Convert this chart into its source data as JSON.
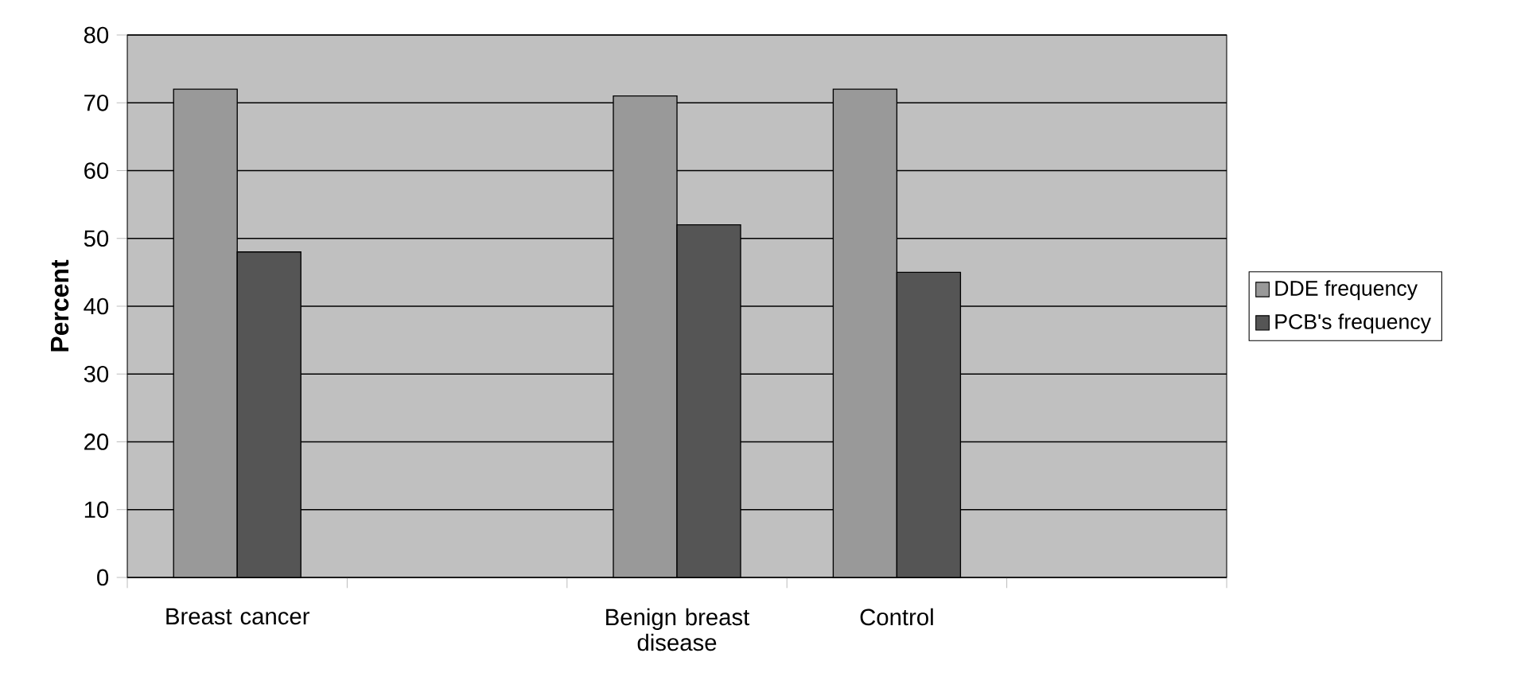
{
  "chart_data": {
    "type": "bar",
    "ylabel": "Percent",
    "categories": [
      "Breast cancer",
      null,
      "Benign breast disease",
      "Control",
      null
    ],
    "series": [
      {
        "name": "DDE frequency",
        "color": "#999999",
        "values": [
          72,
          null,
          71,
          72,
          null
        ]
      },
      {
        "name": "PCB's frequency",
        "color": "#555555",
        "values": [
          48,
          null,
          52,
          45,
          null
        ]
      }
    ],
    "ylim": [
      0,
      80
    ],
    "yticks": [
      0,
      10,
      20,
      30,
      40,
      50,
      60,
      70,
      80
    ],
    "grid": "y",
    "legend": "right"
  }
}
